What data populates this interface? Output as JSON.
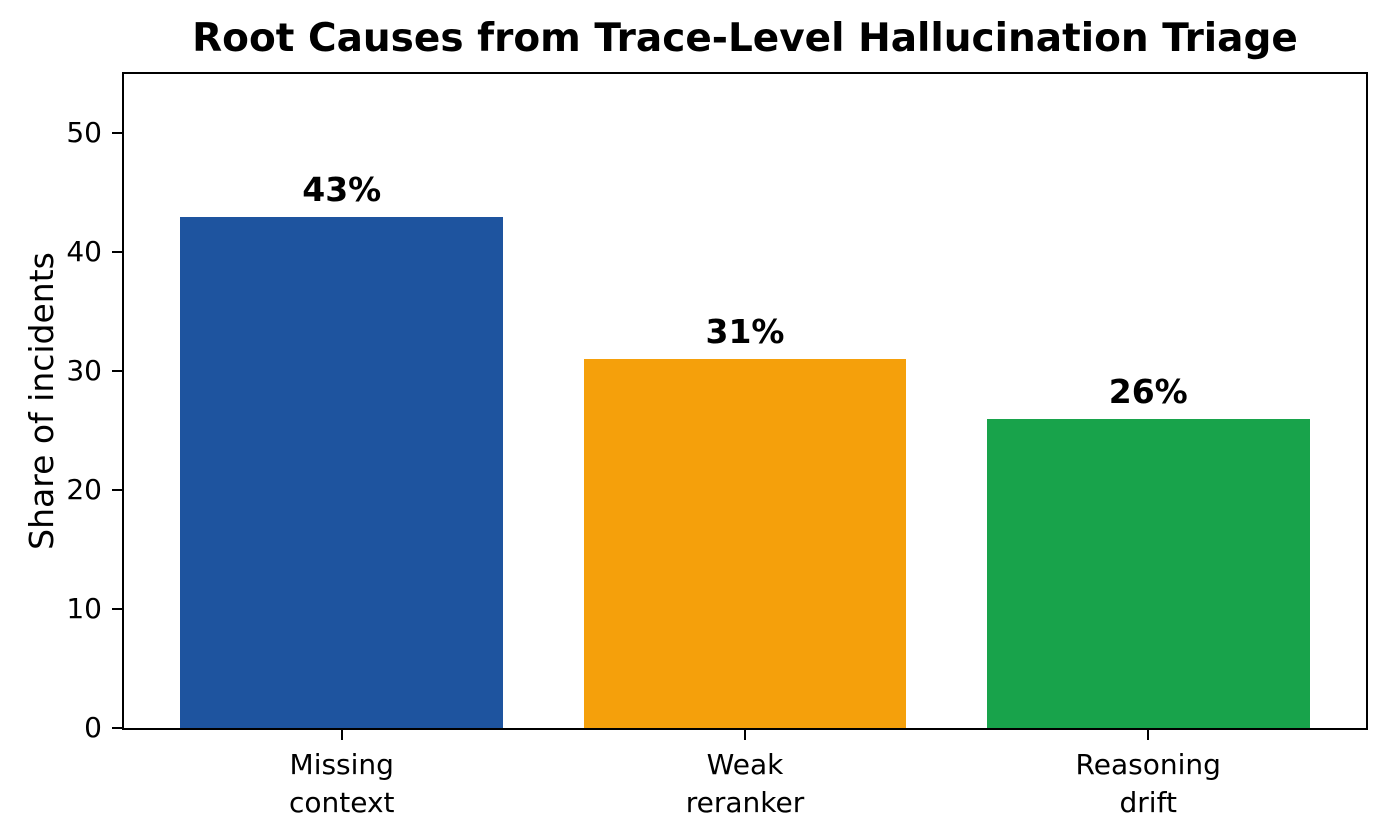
{
  "figure": {
    "background": "#ffffff",
    "axis_color": "#000000",
    "text_color": "#000000"
  },
  "chart_data": {
    "type": "bar",
    "title": "Root Causes from Trace-Level Hallucination Triage",
    "xlabel": "",
    "ylabel": "Share of incidents",
    "categories": [
      "Missing\ncontext",
      "Weak\nreranker",
      "Reasoning\ndrift"
    ],
    "values": [
      43,
      31,
      26
    ],
    "bar_labels": [
      "43%",
      "31%",
      "26%"
    ],
    "bar_colors": [
      "#1e549f",
      "#f5a00b",
      "#18a34b"
    ],
    "ylim": [
      0,
      55
    ],
    "yticks": [
      0,
      10,
      20,
      30,
      40,
      50
    ],
    "grid": false,
    "legend": "none",
    "bar_width_fraction": 0.8
  }
}
